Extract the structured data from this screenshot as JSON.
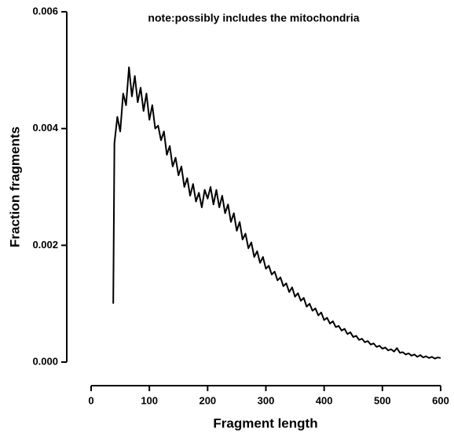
{
  "chart_data": {
    "type": "line",
    "annotation": "note:possibly includes the mitochondria",
    "xlabel": "Fragment length",
    "ylabel": "Fraction fragments",
    "xlim": [
      0,
      600
    ],
    "xticks": [
      0,
      100,
      200,
      300,
      400,
      500,
      600
    ],
    "ylim": [
      0,
      0.006
    ],
    "yticks": [
      {
        "value": 0,
        "label": "0.000"
      },
      0.002,
      0.004,
      0.006
    ],
    "color": "#000000",
    "x": [
      38,
      40,
      45,
      50,
      55,
      60,
      65,
      70,
      75,
      80,
      85,
      90,
      95,
      100,
      105,
      110,
      115,
      120,
      125,
      130,
      135,
      140,
      145,
      150,
      155,
      160,
      165,
      170,
      175,
      180,
      185,
      190,
      195,
      200,
      205,
      210,
      215,
      220,
      225,
      230,
      235,
      240,
      245,
      250,
      255,
      260,
      265,
      270,
      275,
      280,
      285,
      290,
      295,
      300,
      305,
      310,
      315,
      320,
      325,
      330,
      335,
      340,
      345,
      350,
      355,
      360,
      365,
      370,
      375,
      380,
      385,
      390,
      395,
      400,
      405,
      410,
      415,
      420,
      425,
      430,
      435,
      440,
      445,
      450,
      455,
      460,
      465,
      470,
      475,
      480,
      485,
      490,
      495,
      500,
      505,
      510,
      515,
      520,
      525,
      530,
      535,
      540,
      545,
      550,
      555,
      560,
      565,
      570,
      575,
      580,
      585,
      590,
      595,
      600
    ],
    "values": [
      0.001,
      0.00375,
      0.0042,
      0.00395,
      0.0046,
      0.0044,
      0.00505,
      0.00455,
      0.0049,
      0.00445,
      0.0047,
      0.0043,
      0.0046,
      0.00415,
      0.0044,
      0.004,
      0.00405,
      0.0038,
      0.00395,
      0.00355,
      0.0037,
      0.00335,
      0.0035,
      0.0032,
      0.00335,
      0.003,
      0.00315,
      0.00285,
      0.00305,
      0.00275,
      0.0029,
      0.00265,
      0.00295,
      0.0028,
      0.003,
      0.0027,
      0.00295,
      0.00265,
      0.00285,
      0.00255,
      0.0027,
      0.0024,
      0.00255,
      0.00225,
      0.0024,
      0.0021,
      0.0022,
      0.00195,
      0.00205,
      0.0018,
      0.0019,
      0.0017,
      0.0018,
      0.0016,
      0.00165,
      0.0015,
      0.00155,
      0.0014,
      0.00145,
      0.0013,
      0.00135,
      0.0012,
      0.00128,
      0.00112,
      0.00118,
      0.00105,
      0.0011,
      0.00095,
      0.001,
      0.00088,
      0.00092,
      0.0008,
      0.00085,
      0.00072,
      0.00076,
      0.00066,
      0.0007,
      0.0006,
      0.00062,
      0.00054,
      0.00057,
      0.00048,
      0.00051,
      0.00043,
      0.00045,
      0.00038,
      0.0004,
      0.00034,
      0.00036,
      0.0003,
      0.00032,
      0.00026,
      0.00028,
      0.00023,
      0.00025,
      0.0002,
      0.00022,
      0.00018,
      0.00024,
      0.00016,
      0.00017,
      0.00013,
      0.00015,
      0.00011,
      0.00013,
      9e-05,
      0.00012,
      8e-05,
      0.0001,
      7e-05,
      9e-05,
      6e-05,
      8e-05,
      7e-05
    ]
  }
}
